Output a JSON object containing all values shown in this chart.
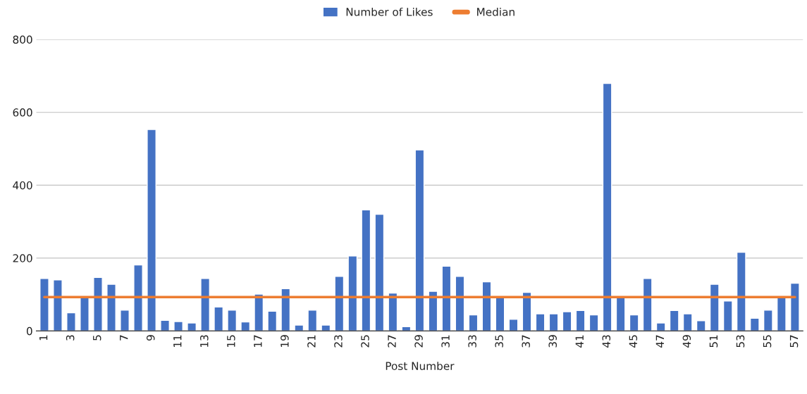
{
  "chart_data": {
    "type": "bar",
    "xlabel": "Post Number",
    "categories": [
      "1",
      null,
      "3",
      null,
      "5",
      null,
      "7",
      null,
      "9",
      null,
      "11",
      null,
      "13",
      null,
      "15",
      null,
      "17",
      null,
      "19",
      null,
      "21",
      null,
      "23",
      null,
      "25",
      null,
      "27",
      null,
      "29",
      null,
      "31",
      null,
      "33",
      null,
      "35",
      null,
      "37",
      null,
      "39",
      null,
      "41",
      null,
      "43",
      null,
      "45",
      null,
      "47",
      null,
      "49",
      null,
      "51",
      null,
      "53",
      null,
      "55",
      null,
      "57"
    ],
    "series": [
      {
        "name": "Number of Likes",
        "color": "#4472c4",
        "values": [
          144,
          140,
          50,
          93,
          147,
          128,
          57,
          181,
          553,
          29,
          26,
          22,
          144,
          66,
          57,
          25,
          101,
          54,
          116,
          16,
          57,
          16,
          150,
          206,
          332,
          320,
          104,
          12,
          497,
          109,
          178,
          150,
          44,
          135,
          92,
          32,
          106,
          47,
          47,
          53,
          56,
          44,
          679,
          94,
          44,
          144,
          22,
          56,
          47,
          28,
          128,
          82,
          216,
          35,
          57,
          93,
          131
        ]
      }
    ],
    "ref_lines": [
      {
        "axis": "y",
        "value": 93,
        "label": "Median",
        "color": "#ed7d31"
      }
    ],
    "ylim": [
      0,
      800
    ],
    "yticks": [
      0,
      200,
      400,
      600,
      800
    ],
    "grid": "y",
    "legend": "top"
  }
}
